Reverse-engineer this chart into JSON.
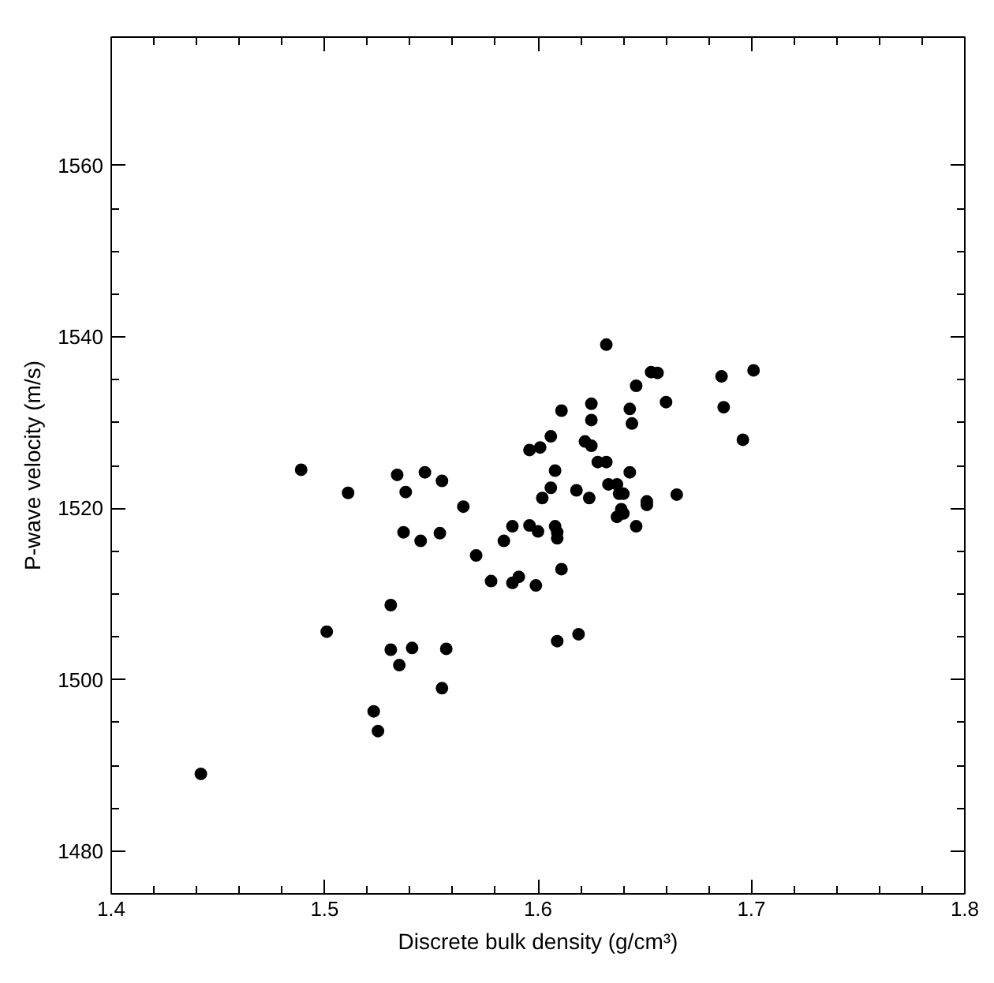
{
  "chart_data": {
    "type": "scatter",
    "xlabel": "Discrete bulk density (g/cm³)",
    "ylabel": "P-wave velocity (m/s)",
    "xlim": [
      1.4,
      1.8
    ],
    "ylim": [
      1475,
      1575
    ],
    "xticks": [
      1.4,
      1.5,
      1.6,
      1.7,
      1.8
    ],
    "yticks": [
      1480,
      1500,
      1520,
      1540,
      1560
    ],
    "marker": "circle",
    "series": [
      {
        "color": "#000000",
        "x": [
          1.611,
          1.606,
          1.601,
          1.596,
          1.608,
          1.606,
          1.602,
          1.489,
          1.511,
          1.534,
          1.547,
          1.555,
          1.538,
          1.565,
          1.537,
          1.545,
          1.554,
          1.571,
          1.584,
          1.588,
          1.596,
          1.6,
          1.608,
          1.609,
          1.609,
          1.611,
          1.578,
          1.588,
          1.591,
          1.599,
          1.609,
          1.531,
          1.501,
          1.531,
          1.541,
          1.557,
          1.535,
          1.555,
          1.523,
          1.525,
          1.442,
          1.619,
          1.632,
          1.653,
          1.656,
          1.646,
          1.686,
          1.701,
          1.625,
          1.66,
          1.643,
          1.687,
          1.625,
          1.644,
          1.696,
          1.622,
          1.625,
          1.628,
          1.632,
          1.643,
          1.633,
          1.637,
          1.618,
          1.624,
          1.638,
          1.64,
          1.665,
          1.651,
          1.651,
          1.639,
          1.64,
          1.637,
          1.646
        ],
        "values": [
          1531.4,
          1528.4,
          1527.1,
          1526.8,
          1524.4,
          1522.4,
          1521.2,
          1524.5,
          1521.8,
          1523.9,
          1524.2,
          1523.2,
          1521.9,
          1520.2,
          1517.2,
          1516.2,
          1517.1,
          1514.5,
          1516.2,
          1517.9,
          1518.0,
          1517.3,
          1517.9,
          1517.2,
          1516.5,
          1512.9,
          1511.5,
          1511.3,
          1512.0,
          1511.0,
          1504.5,
          1508.7,
          1505.6,
          1503.5,
          1503.7,
          1503.6,
          1501.7,
          1499.0,
          1496.3,
          1494.0,
          1489.0,
          1505.3,
          1539.1,
          1535.9,
          1535.8,
          1534.3,
          1535.4,
          1536.1,
          1532.2,
          1532.4,
          1531.6,
          1531.8,
          1530.3,
          1529.9,
          1528.0,
          1527.8,
          1527.3,
          1525.4,
          1525.4,
          1524.2,
          1522.8,
          1522.8,
          1522.1,
          1521.2,
          1521.7,
          1521.7,
          1521.6,
          1520.8,
          1520.4,
          1519.9,
          1519.4,
          1519.0,
          1517.9
        ]
      }
    ]
  }
}
